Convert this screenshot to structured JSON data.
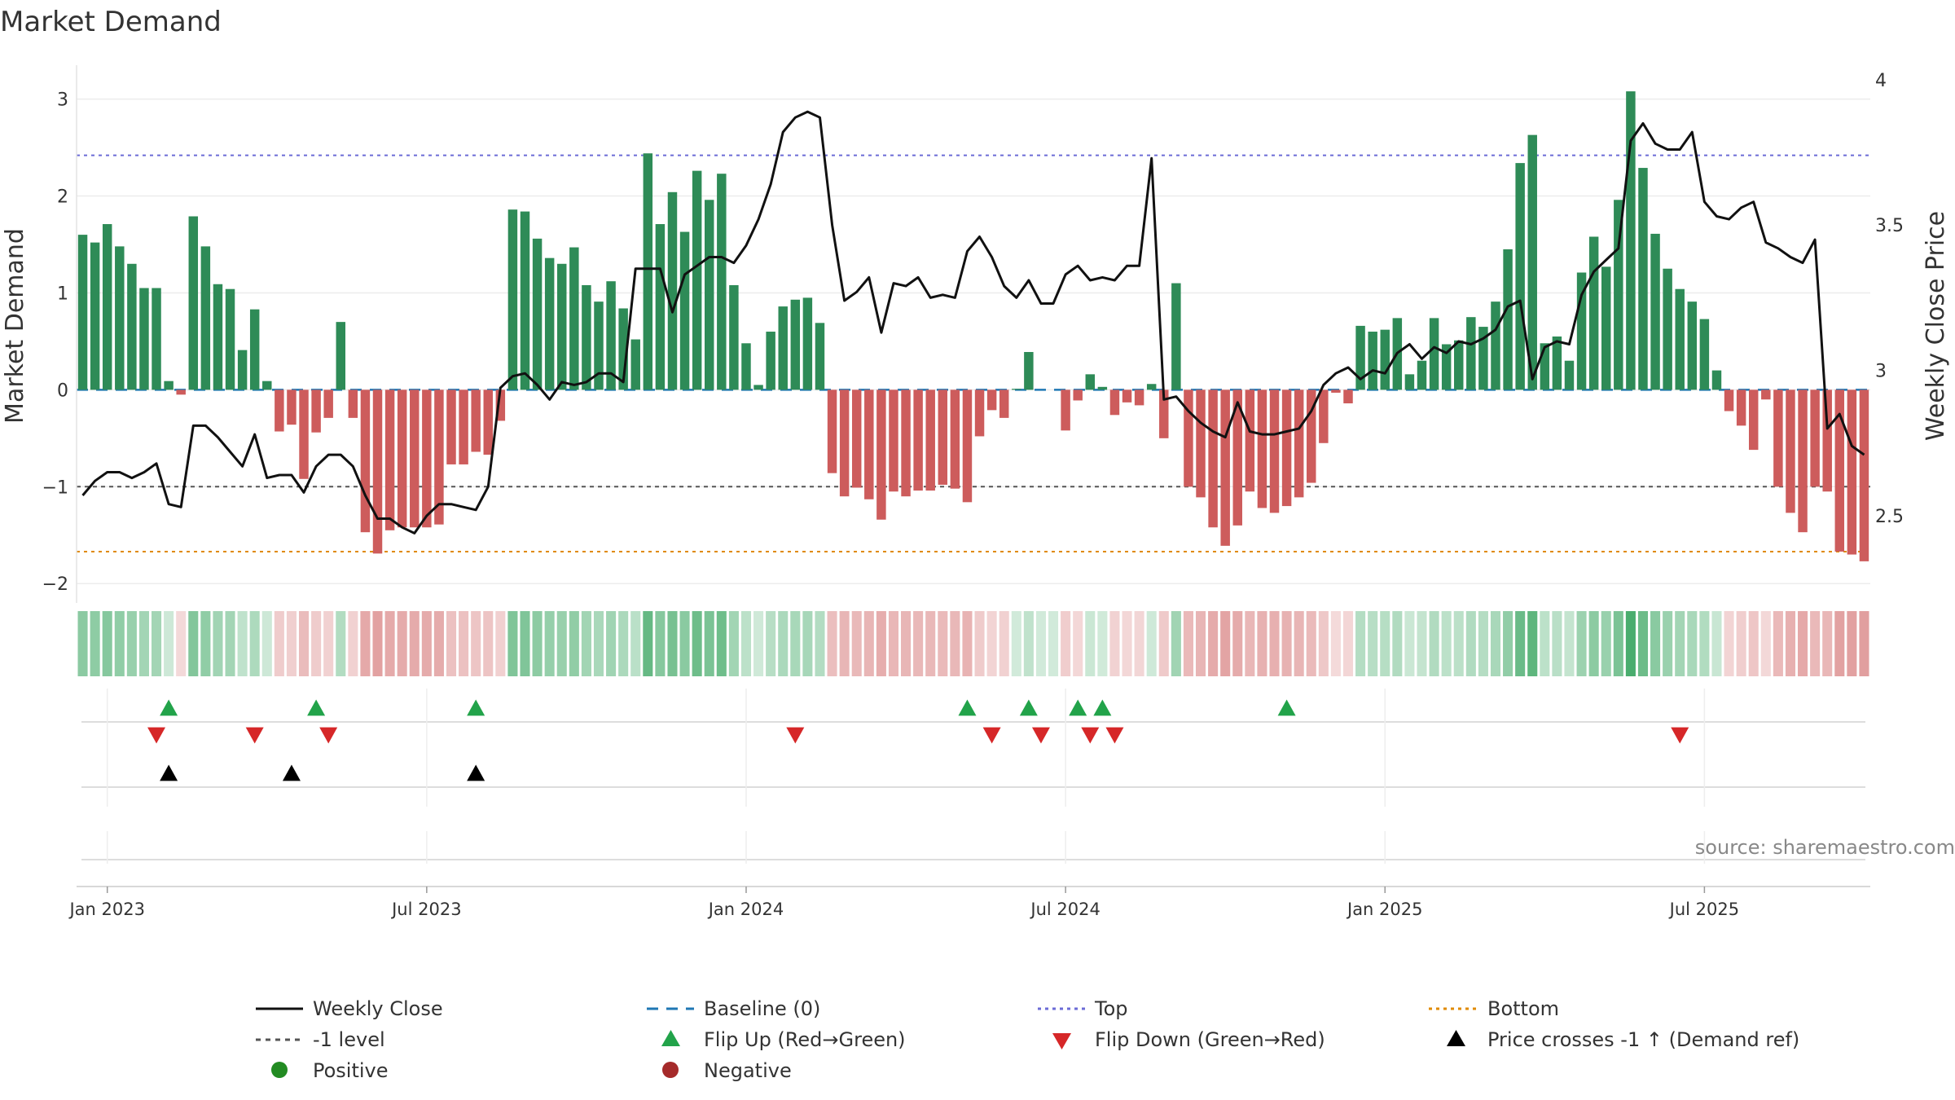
{
  "chart_data": {
    "type": "bar",
    "title": "Market Demand",
    "ylabel": "Market Demand",
    "y2label": "Weekly Close Price",
    "ylim": [
      -2.2,
      3.35
    ],
    "y2lim": [
      2.2,
      4.05
    ],
    "yticks": [
      "3",
      "2",
      "1",
      "0",
      "−1",
      "−2"
    ],
    "y2ticks": [
      "4",
      "3.5",
      "3",
      "2.5"
    ],
    "xtick_labels": [
      "Jan 2023",
      "Jul 2023",
      "Jan 2024",
      "Jul 2024",
      "Jan 2025",
      "Jul 2025"
    ],
    "xtick_weeks": [
      0,
      26,
      52,
      78,
      104,
      130
    ],
    "first_week_offset": -2,
    "reference_lines": {
      "top": 2.42,
      "minus_one": -1.0,
      "bottom": -1.67,
      "baseline": 0
    },
    "demand": [
      1.6,
      1.52,
      1.71,
      1.48,
      1.3,
      1.05,
      1.05,
      0.09,
      -0.05,
      1.79,
      1.48,
      1.09,
      1.04,
      0.41,
      0.83,
      0.09,
      -0.43,
      -0.36,
      -0.92,
      -0.44,
      -0.29,
      0.7,
      -0.29,
      -1.47,
      -1.69,
      -1.45,
      -1.42,
      -1.42,
      -1.42,
      -1.39,
      -0.77,
      -0.77,
      -0.64,
      -0.67,
      -0.32,
      1.86,
      1.84,
      1.56,
      1.36,
      1.3,
      1.47,
      1.08,
      0.91,
      1.12,
      0.84,
      0.52,
      2.44,
      1.71,
      2.04,
      1.63,
      2.26,
      1.96,
      2.23,
      1.08,
      0.48,
      0.05,
      0.6,
      0.86,
      0.93,
      0.95,
      0.69,
      -0.86,
      -1.1,
      -1.01,
      -1.13,
      -1.34,
      -1.05,
      -1.1,
      -1.04,
      -1.04,
      -0.98,
      -1.02,
      -1.16,
      -0.48,
      -0.21,
      -0.29,
      0.01,
      0.39,
      0.0,
      0.0,
      -0.42,
      -0.11,
      0.16,
      0.03,
      -0.26,
      -0.13,
      -0.16,
      0.06,
      -0.5,
      1.1,
      -1.0,
      -1.11,
      -1.42,
      -1.61,
      -1.4,
      -1.05,
      -1.22,
      -1.27,
      -1.2,
      -1.11,
      -0.96,
      -0.55,
      -0.03,
      -0.14,
      0.66,
      0.6,
      0.62,
      0.74,
      0.16,
      0.3,
      0.74,
      0.47,
      0.51,
      0.75,
      0.65,
      0.91,
      1.45,
      2.34,
      2.63,
      0.48,
      0.55,
      0.3,
      1.21,
      1.58,
      1.27,
      1.96,
      3.08,
      2.29,
      1.61,
      1.25,
      1.04,
      0.91,
      0.73,
      0.2,
      -0.22,
      -0.37,
      -0.62,
      -0.1,
      -1.0,
      -1.27,
      -1.47,
      -1.0,
      -1.05,
      -1.67,
      -1.7,
      -1.77
    ],
    "weekly_close": [
      2.57,
      2.62,
      2.65,
      2.65,
      2.63,
      2.65,
      2.68,
      2.54,
      2.53,
      2.81,
      2.81,
      2.77,
      2.72,
      2.67,
      2.78,
      2.63,
      2.64,
      2.64,
      2.58,
      2.67,
      2.71,
      2.71,
      2.67,
      2.57,
      2.49,
      2.49,
      2.46,
      2.44,
      2.5,
      2.54,
      2.54,
      2.53,
      2.52,
      2.6,
      2.94,
      2.98,
      2.99,
      2.95,
      2.9,
      2.96,
      2.95,
      2.96,
      2.99,
      2.99,
      2.96,
      3.35,
      3.35,
      3.35,
      3.2,
      3.33,
      3.36,
      3.39,
      3.39,
      3.37,
      3.43,
      3.52,
      3.64,
      3.82,
      3.87,
      3.89,
      3.87,
      3.5,
      3.24,
      3.27,
      3.32,
      3.13,
      3.3,
      3.29,
      3.32,
      3.25,
      3.26,
      3.25,
      3.41,
      3.46,
      3.39,
      3.29,
      3.25,
      3.31,
      3.23,
      3.23,
      3.33,
      3.36,
      3.31,
      3.32,
      3.31,
      3.36,
      3.36,
      3.73,
      2.9,
      2.91,
      2.86,
      2.82,
      2.79,
      2.77,
      2.89,
      2.79,
      2.78,
      2.78,
      2.79,
      2.8,
      2.86,
      2.95,
      2.99,
      3.01,
      2.97,
      3.0,
      2.99,
      3.06,
      3.09,
      3.04,
      3.08,
      3.06,
      3.1,
      3.09,
      3.11,
      3.14,
      3.22,
      3.24,
      2.97,
      3.08,
      3.1,
      3.09,
      3.26,
      3.34,
      3.38,
      3.42,
      3.79,
      3.85,
      3.78,
      3.76,
      3.76,
      3.82,
      3.58,
      3.53,
      3.52,
      3.56,
      3.58,
      3.44,
      3.42,
      3.39,
      3.37,
      3.45,
      2.8,
      2.85,
      2.74,
      2.71
    ],
    "flip_up_weeks": [
      7,
      19,
      32,
      72,
      77,
      81,
      83,
      98
    ],
    "flip_down_weeks": [
      6,
      14,
      20,
      58,
      74,
      78,
      82,
      84,
      130
    ],
    "price_cross_weeks": [
      7,
      17,
      32
    ],
    "colors": {
      "positive": "#2e8b57",
      "negative": "#cd5c5c",
      "weekly_close": "#111111",
      "baseline": "#1f77b4",
      "top": "#6b6bd6",
      "bottom": "#e08a00",
      "minus_one": "#555555",
      "flip_up": "#22a34a",
      "flip_down": "#d62728",
      "price_cross": "#000000"
    }
  },
  "source": "source: sharemaestro.com",
  "legend": {
    "weekly_close": "Weekly Close",
    "baseline": "Baseline (0)",
    "top": "Top",
    "bottom": "Bottom",
    "minus_one": "-1 level",
    "flip_up": "Flip Up (Red→Green)",
    "flip_down": "Flip Down (Green→Red)",
    "price_cross": "Price crosses -1 ↑ (Demand ref)",
    "positive": "Positive",
    "negative": "Negative"
  }
}
